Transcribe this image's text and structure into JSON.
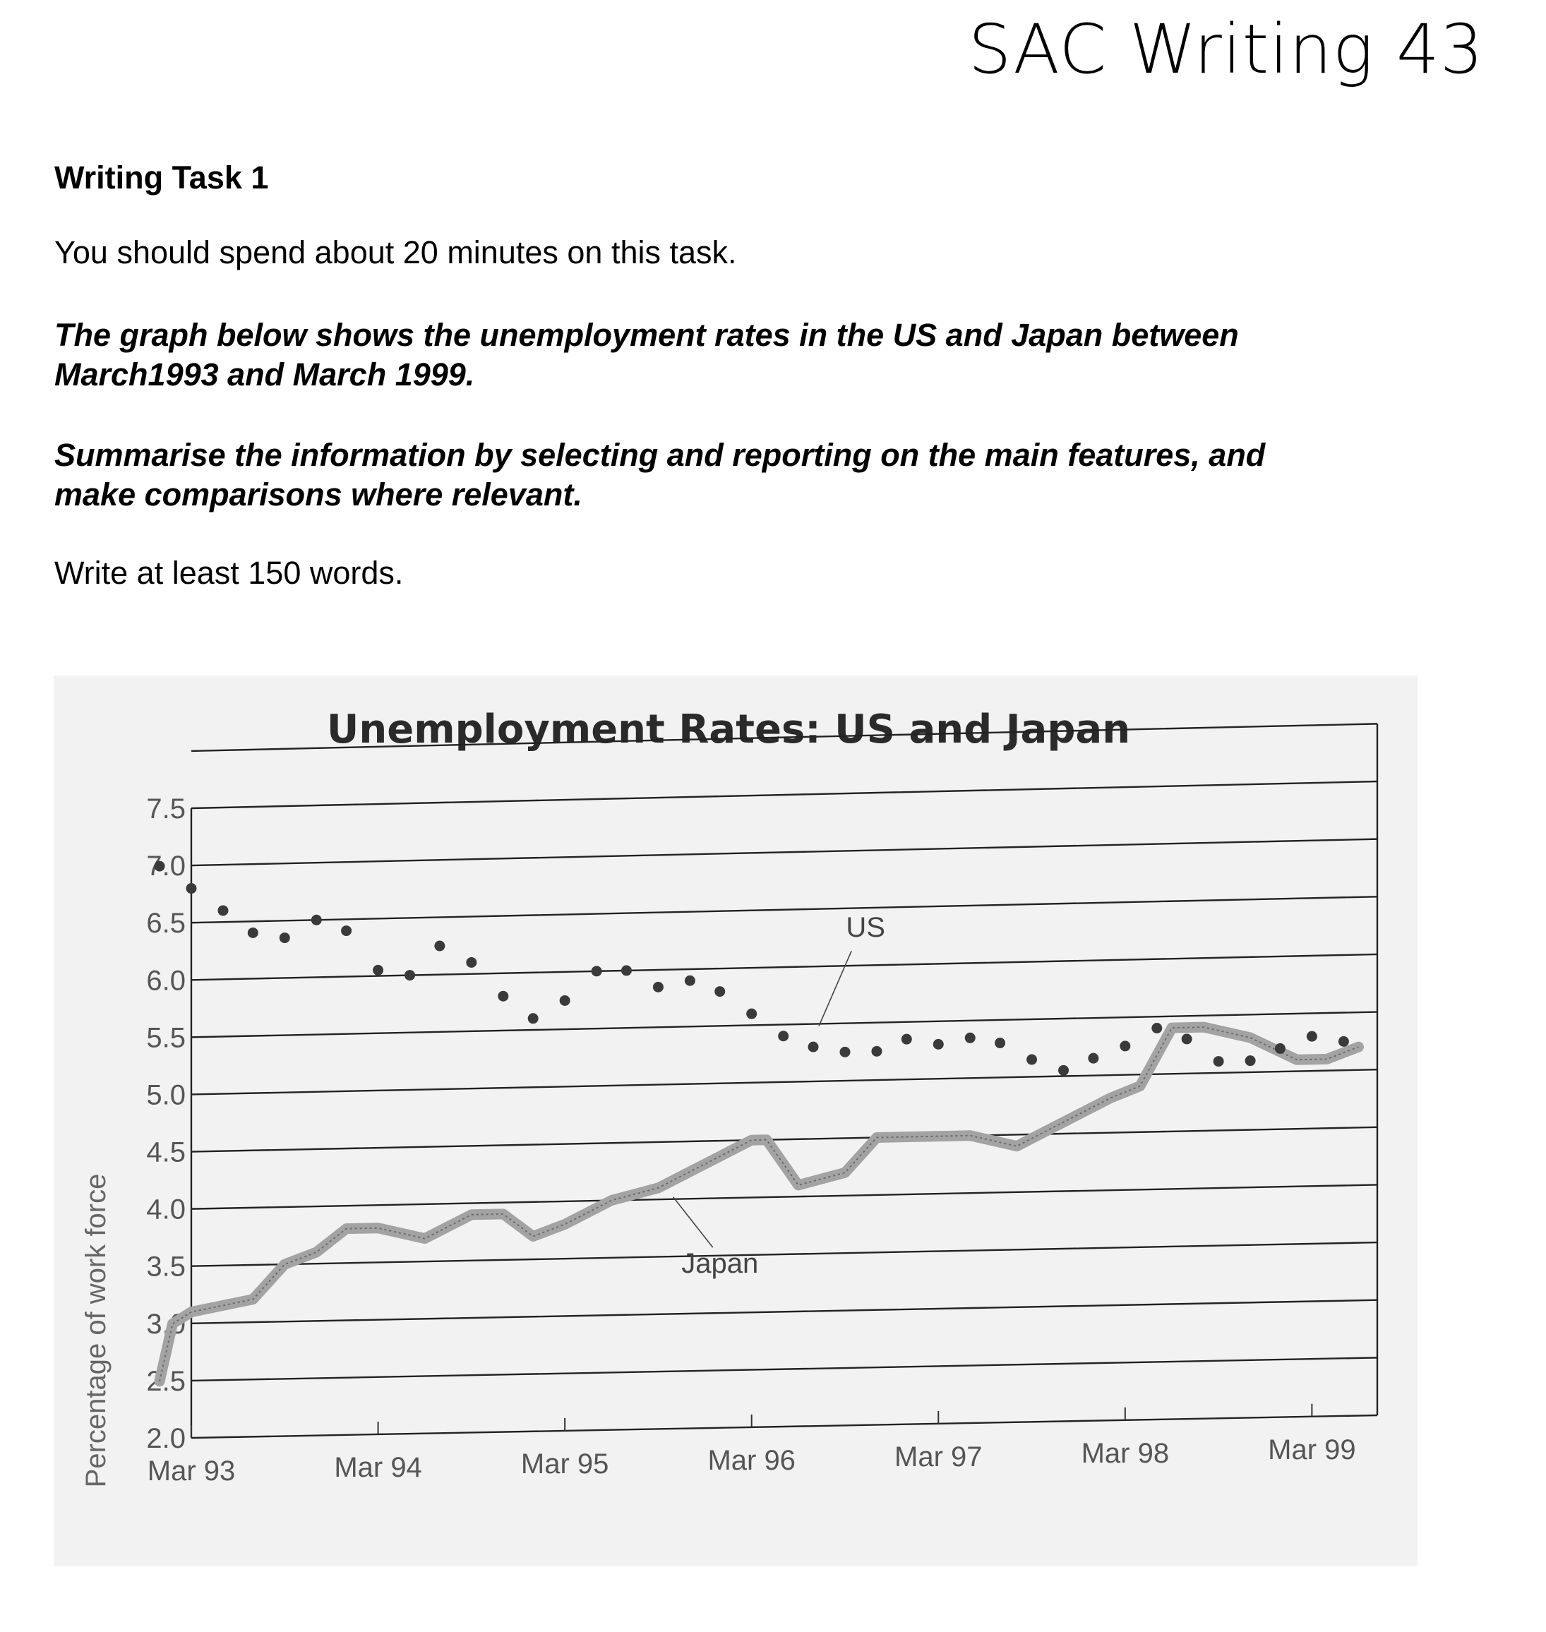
{
  "header": {
    "title": "SAC Writing 43"
  },
  "task": {
    "heading": "Writing Task 1",
    "time_instruction": "You should spend about 20 minutes on this task.",
    "graph_description_line1": "The graph below shows the unemployment rates in the US and Japan between",
    "graph_description_line2": "March1993 and March 1999.",
    "summary_line1": "Summarise the information by selecting and reporting on the main features, and",
    "summary_line2": "make comparisons where relevant.",
    "word_count": "Write at least 150 words."
  },
  "chart_data": {
    "type": "line",
    "title": "Unemployment Rates: US and Japan",
    "xlabel": "",
    "ylabel": "Percentage of work force",
    "x_ticks": [
      "Mar 93",
      "Mar 94",
      "Mar 95",
      "Mar 96",
      "Mar 97",
      "Mar 98",
      "Mar 99"
    ],
    "y_ticks": [
      "2.0",
      "2.5",
      "3.0",
      "3.5",
      "4.0",
      "4.5",
      "5.0",
      "5.5",
      "6.0",
      "6.5",
      "7.0",
      "7.5"
    ],
    "ylim": [
      2.0,
      7.5
    ],
    "xlim": [
      1993.0,
      1999.35
    ],
    "grid": true,
    "series": [
      {
        "name": "US",
        "style": "dotted",
        "color": "#333333",
        "x": [
          1992.83,
          1993.0,
          1993.17,
          1993.33,
          1993.5,
          1993.67,
          1993.83,
          1994.0,
          1994.17,
          1994.33,
          1994.5,
          1994.67,
          1994.83,
          1995.0,
          1995.17,
          1995.33,
          1995.5,
          1995.67,
          1995.83,
          1996.0,
          1996.17,
          1996.33,
          1996.5,
          1996.67,
          1996.83,
          1997.0,
          1997.17,
          1997.33,
          1997.5,
          1997.67,
          1997.83,
          1998.0,
          1998.17,
          1998.33,
          1998.5,
          1998.67,
          1998.83,
          1999.0,
          1999.17
        ],
        "values": [
          7.0,
          6.8,
          6.6,
          6.4,
          6.35,
          6.5,
          6.4,
          6.05,
          6.0,
          6.25,
          6.1,
          5.8,
          5.6,
          5.75,
          6.0,
          6.0,
          5.85,
          5.9,
          5.8,
          5.6,
          5.4,
          5.3,
          5.25,
          5.25,
          5.35,
          5.3,
          5.35,
          5.3,
          5.15,
          5.05,
          5.15,
          5.25,
          5.4,
          5.3,
          5.1,
          5.1,
          5.2,
          5.3,
          5.25
        ]
      },
      {
        "name": "Japan",
        "style": "line",
        "color": "#8a8a8a",
        "x": [
          1992.83,
          1992.9,
          1993.0,
          1993.33,
          1993.5,
          1993.67,
          1993.83,
          1994.0,
          1994.25,
          1994.5,
          1994.67,
          1994.83,
          1995.0,
          1995.25,
          1995.5,
          1995.75,
          1996.0,
          1996.08,
          1996.25,
          1996.5,
          1996.67,
          1996.92,
          1997.17,
          1997.42,
          1997.67,
          1997.92,
          1998.08,
          1998.25,
          1998.42,
          1998.67,
          1998.92,
          1999.08,
          1999.25
        ],
        "values": [
          2.5,
          3.0,
          3.1,
          3.2,
          3.5,
          3.6,
          3.8,
          3.8,
          3.7,
          3.9,
          3.9,
          3.7,
          3.8,
          4.0,
          4.1,
          4.3,
          4.5,
          4.5,
          4.1,
          4.2,
          4.5,
          4.5,
          4.5,
          4.4,
          4.6,
          4.8,
          4.9,
          5.4,
          5.4,
          5.3,
          5.1,
          5.1,
          5.2
        ]
      }
    ]
  }
}
